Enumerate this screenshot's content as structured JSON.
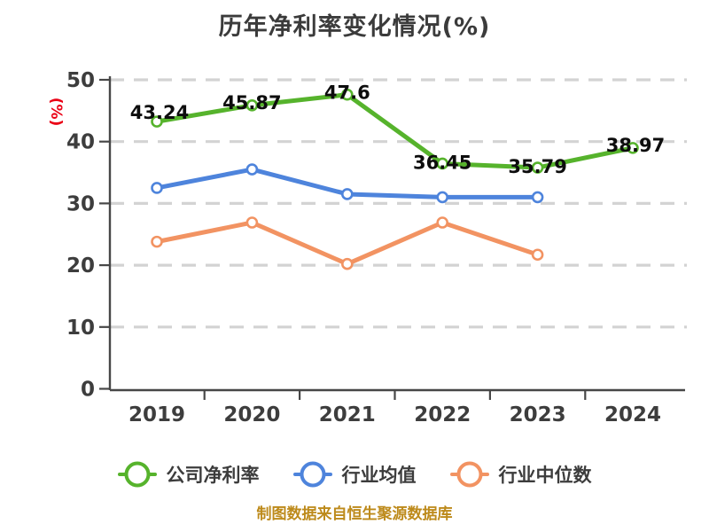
{
  "chart_data": {
    "type": "line",
    "title": "历年净利率变化情况(%)",
    "ylabel": "(%)",
    "source_note": "制图数据来自恒生聚源数据库",
    "categories": [
      "2019",
      "2020",
      "2021",
      "2022",
      "2023",
      "2024"
    ],
    "yticks": [
      0,
      10,
      20,
      30,
      40,
      50
    ],
    "ylim": [
      0,
      50
    ],
    "grid": "horizontal-dashed",
    "legend_position": "bottom",
    "series": [
      {
        "name": "公司净利率",
        "color": "#56b32c",
        "values": [
          43.24,
          45.87,
          47.6,
          36.45,
          35.79,
          38.97
        ],
        "data_labels": [
          "43.24",
          "45.87",
          "47.6",
          "36.45",
          "35.79",
          "38.97"
        ]
      },
      {
        "name": "行业均值",
        "color": "#4e84dc",
        "values": [
          32.5,
          35.5,
          31.5,
          31.0,
          31.0,
          null
        ],
        "data_labels": null
      },
      {
        "name": "行业中位数",
        "color": "#f29362",
        "values": [
          23.8,
          26.9,
          20.2,
          26.9,
          21.7,
          null
        ],
        "data_labels": null
      }
    ],
    "colors": {
      "axis": "#474747",
      "grid": "#d3d3d3",
      "tick_label": "#3d3d3d",
      "title": "#3b3b3b",
      "ylabel": "#ea0015",
      "value_label": "#0d0d0d",
      "source_note": "#bd8a1b",
      "marker_fill": "#ffffff"
    }
  }
}
